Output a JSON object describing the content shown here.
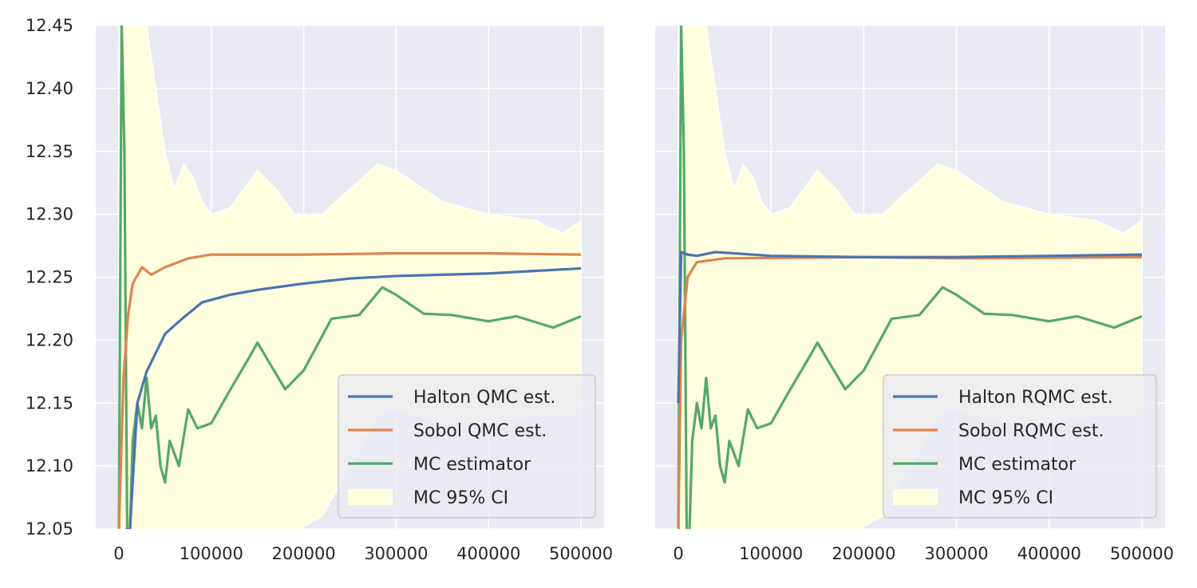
{
  "chart_data": [
    {
      "type": "line",
      "xlim": [
        -25000,
        525000
      ],
      "ylim": [
        12.05,
        12.45
      ],
      "x_ticks": [
        "0",
        "100000",
        "200000",
        "300000",
        "400000",
        "500000"
      ],
      "y_ticks": [
        "12.05",
        "12.10",
        "12.15",
        "12.20",
        "12.25",
        "12.30",
        "12.35",
        "12.40",
        "12.45"
      ],
      "grid": true,
      "legend": "lower-right",
      "series": [
        {
          "name": "Halton QMC est.",
          "color": "#4c72b0",
          "x": [
            0,
            12000,
            20000,
            30000,
            40000,
            50000,
            70000,
            90000,
            120000,
            150000,
            200000,
            250000,
            300000,
            400000,
            500000
          ],
          "y": [
            11.9,
            12.05,
            12.15,
            12.175,
            12.19,
            12.205,
            12.218,
            12.23,
            12.236,
            12.24,
            12.245,
            12.249,
            12.251,
            12.253,
            12.257
          ]
        },
        {
          "name": "Sobol QMC est.",
          "color": "#dd8452",
          "x": [
            0,
            5000,
            10000,
            15000,
            25000,
            35000,
            50000,
            75000,
            100000,
            150000,
            200000,
            300000,
            400000,
            500000
          ],
          "y": [
            11.9,
            12.17,
            12.22,
            12.245,
            12.258,
            12.252,
            12.258,
            12.265,
            12.268,
            12.268,
            12.268,
            12.269,
            12.269,
            12.268
          ]
        },
        {
          "name": "MC estimator",
          "color": "#55a868",
          "x": [
            0,
            3000,
            6000,
            9000,
            12000,
            15000,
            20000,
            25000,
            30000,
            35000,
            40000,
            45000,
            50000,
            55000,
            65000,
            75000,
            85000,
            100000,
            120000,
            140000,
            150000,
            180000,
            200000,
            230000,
            260000,
            285000,
            300000,
            330000,
            360000,
            400000,
            430000,
            470000,
            500000
          ],
          "y": [
            11.9,
            12.6,
            12.35,
            11.9,
            11.95,
            12.12,
            12.15,
            12.13,
            12.17,
            12.13,
            12.14,
            12.1,
            12.087,
            12.12,
            12.1,
            12.145,
            12.13,
            12.134,
            12.16,
            12.185,
            12.198,
            12.161,
            12.176,
            12.217,
            12.22,
            12.242,
            12.236,
            12.221,
            12.22,
            12.215,
            12.219,
            12.21,
            12.219
          ]
        },
        {
          "name": "MC 95% CI",
          "color": "#ffffe0",
          "type": "band",
          "x": [
            0,
            30000,
            40000,
            50000,
            60000,
            70000,
            80000,
            90000,
            100000,
            120000,
            150000,
            170000,
            190000,
            220000,
            250000,
            280000,
            300000,
            350000,
            400000,
            450000,
            480000,
            500000
          ],
          "upper": [
            12.7,
            12.45,
            12.4,
            12.35,
            12.32,
            12.34,
            12.33,
            12.31,
            12.3,
            12.305,
            12.335,
            12.32,
            12.3,
            12.3,
            12.32,
            12.34,
            12.335,
            12.31,
            12.3,
            12.295,
            12.285,
            12.295
          ],
          "lower": [
            11.5,
            11.8,
            11.85,
            11.9,
            11.93,
            11.95,
            11.97,
            11.98,
            11.99,
            12.0,
            12.02,
            12.02,
            12.03,
            12.06,
            12.1,
            12.14,
            12.145,
            12.135,
            12.135,
            12.14,
            12.14,
            12.143
          ]
        }
      ]
    },
    {
      "type": "line",
      "xlim": [
        -25000,
        525000
      ],
      "ylim": [
        12.05,
        12.45
      ],
      "x_ticks": [
        "0",
        "100000",
        "200000",
        "300000",
        "400000",
        "500000"
      ],
      "grid": true,
      "legend": "lower-right",
      "series": [
        {
          "name": "Halton RQMC est.",
          "color": "#4c72b0",
          "x": [
            0,
            3000,
            10000,
            20000,
            40000,
            100000,
            200000,
            300000,
            400000,
            500000
          ],
          "y": [
            12.15,
            12.27,
            12.268,
            12.267,
            12.27,
            12.267,
            12.266,
            12.266,
            12.267,
            12.268
          ]
        },
        {
          "name": "Sobol RQMC est.",
          "color": "#dd8452",
          "x": [
            0,
            3000,
            10000,
            20000,
            50000,
            200000,
            300000,
            500000
          ],
          "y": [
            11.9,
            12.2,
            12.25,
            12.262,
            12.265,
            12.266,
            12.265,
            12.266
          ]
        },
        {
          "name": "MC estimator",
          "color": "#55a868",
          "x": [
            0,
            3000,
            6000,
            9000,
            12000,
            15000,
            20000,
            25000,
            30000,
            35000,
            40000,
            45000,
            50000,
            55000,
            65000,
            75000,
            85000,
            100000,
            120000,
            140000,
            150000,
            180000,
            200000,
            230000,
            260000,
            285000,
            300000,
            330000,
            360000,
            400000,
            430000,
            470000,
            500000
          ],
          "y": [
            11.9,
            12.6,
            12.35,
            11.9,
            11.95,
            12.12,
            12.15,
            12.13,
            12.17,
            12.13,
            12.14,
            12.1,
            12.087,
            12.12,
            12.1,
            12.145,
            12.13,
            12.134,
            12.16,
            12.185,
            12.198,
            12.161,
            12.176,
            12.217,
            12.22,
            12.242,
            12.236,
            12.221,
            12.22,
            12.215,
            12.219,
            12.21,
            12.219
          ]
        },
        {
          "name": "MC 95% CI",
          "color": "#ffffe0",
          "type": "band",
          "x": [
            0,
            30000,
            40000,
            50000,
            60000,
            70000,
            80000,
            90000,
            100000,
            120000,
            150000,
            170000,
            190000,
            220000,
            250000,
            280000,
            300000,
            350000,
            400000,
            450000,
            480000,
            500000
          ],
          "upper": [
            12.7,
            12.45,
            12.4,
            12.35,
            12.32,
            12.34,
            12.33,
            12.31,
            12.3,
            12.305,
            12.335,
            12.32,
            12.3,
            12.3,
            12.32,
            12.34,
            12.335,
            12.31,
            12.3,
            12.295,
            12.285,
            12.295
          ],
          "lower": [
            11.5,
            11.8,
            11.85,
            11.9,
            11.93,
            11.95,
            11.97,
            11.98,
            11.99,
            12.0,
            12.02,
            12.02,
            12.03,
            12.06,
            12.1,
            12.14,
            12.145,
            12.135,
            12.135,
            12.14,
            12.14,
            12.143
          ]
        }
      ]
    }
  ]
}
